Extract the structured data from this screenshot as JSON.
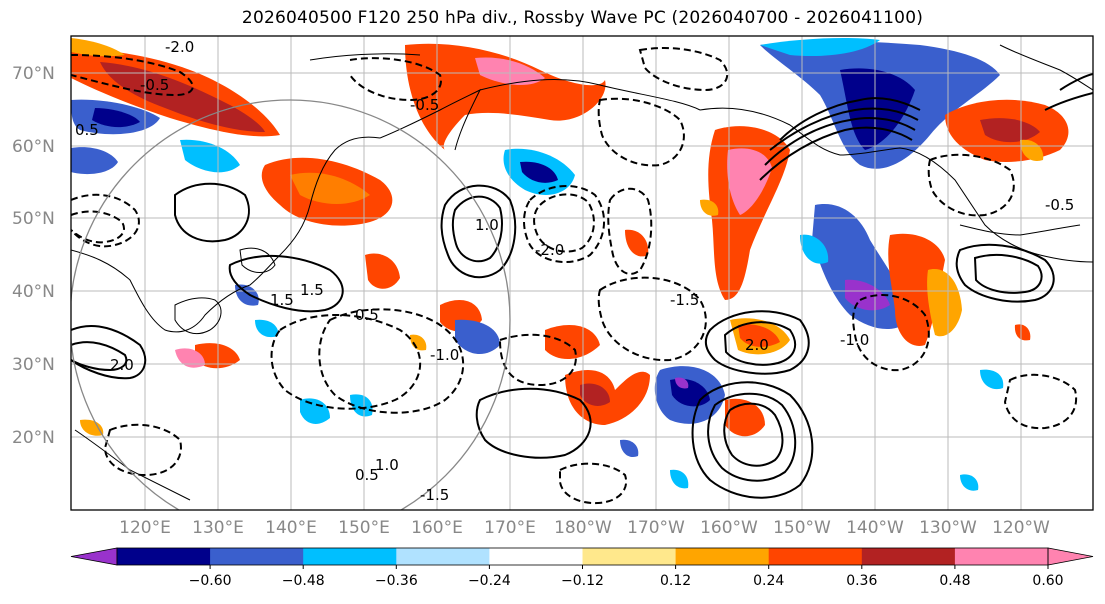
{
  "title": "2026040500 F120 250 hPa div., Rossby Wave PC (2026040700 - 2026041100)",
  "map": {
    "lat_labels": [
      "70°N",
      "60°N",
      "50°N",
      "40°N",
      "30°N",
      "20°N"
    ],
    "lon_labels": [
      "120°E",
      "130°E",
      "140°E",
      "150°E",
      "160°E",
      "170°E",
      "180°W",
      "170°W",
      "160°W",
      "150°W",
      "140°W",
      "130°W",
      "120°W"
    ],
    "contour_labels": [
      "-0.5",
      "-2.0",
      "0.5",
      "-1.0",
      "-1.5",
      "1.0",
      "1.5",
      "2.0",
      "-0.5",
      "0.5",
      "-1.0",
      "2.0",
      "-2.0",
      "1.5",
      "-0.5",
      "-1.5",
      "0.5",
      "1.0"
    ]
  },
  "colorbar": {
    "ticks": [
      "−0.60",
      "−0.48",
      "−0.36",
      "−0.24",
      "−0.12",
      "0.12",
      "0.24",
      "0.36",
      "0.48",
      "0.60"
    ],
    "colors": [
      "#9932cc",
      "#00008b",
      "#3a5fcd",
      "#00bfff",
      "#b0e2ff",
      "#ffffff",
      "#ffe88c",
      "#ffa500",
      "#ff4500",
      "#b22222",
      "#ff83b0",
      "#ff83b0"
    ]
  },
  "colors": {
    "neg_strong": "#00008b",
    "neg_mid": "#3a5fcd",
    "neg_light": "#00bfff",
    "neg_faint": "#b0e2ff",
    "pos_faint": "#ffe88c",
    "pos_light": "#ffa500",
    "pos_mid": "#ff4500",
    "pos_strong": "#b22222",
    "pos_max": "#ff83b0",
    "purple": "#9932cc",
    "grid": "#bbbbbb",
    "axis_text": "#888888"
  }
}
